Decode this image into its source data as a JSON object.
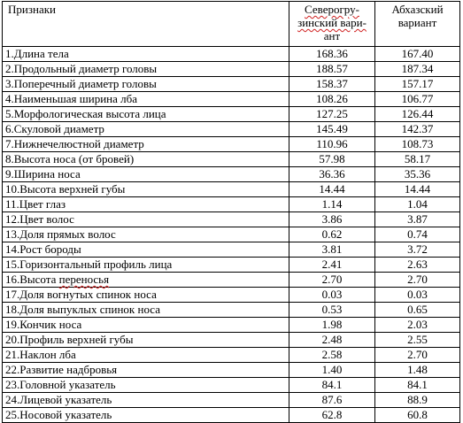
{
  "table": {
    "headers": {
      "col1": "Признаки",
      "col2_line1": "Северогру-",
      "col2_line2": "зинский вари-",
      "col2_line3": "ант",
      "col3_line1": "Абхазский",
      "col3_line2": "вариант"
    },
    "rows": [
      {
        "name": "1.Длина тела",
        "v1": "168.36",
        "v2": "167.40"
      },
      {
        "name": "2.Продольный диаметр головы",
        "v1": "188.57",
        "v2": "187.34"
      },
      {
        "name": "3.Поперечный диаметр головы",
        "v1": "158.37",
        "v2": "157.17"
      },
      {
        "name": "4.Наименьшая ширина лба",
        "v1": "108.26",
        "v2": "106.77"
      },
      {
        "name": "5.Морфологическая высота лица",
        "v1": "127.25",
        "v2": "126.44"
      },
      {
        "name": "6.Скуловой диаметр",
        "v1": "145.49",
        "v2": "142.37"
      },
      {
        "name": "7.Нижнечелюстной диаметр",
        "v1": "110.96",
        "v2": "108.73"
      },
      {
        "name": "8.Высота носа (от бровей)",
        "v1": "57.98",
        "v2": "58.17"
      },
      {
        "name": "9.Ширина носа",
        "v1": "36.36",
        "v2": "35.36"
      },
      {
        "name": "10.Высота верхней губы",
        "v1": "14.44",
        "v2": "14.44"
      },
      {
        "name": "11.Цвет глаз",
        "v1": "1.14",
        "v2": "1.04"
      },
      {
        "name": "12.Цвет волос",
        "v1": "3.86",
        "v2": "3.87"
      },
      {
        "name": "13.Доля прямых волос",
        "v1": "0.62",
        "v2": "0.74"
      },
      {
        "name": "14.Рост бороды",
        "v1": "3.81",
        "v2": "3.72"
      },
      {
        "name": "15.Горизонтальный профиль лица",
        "v1": "2.41",
        "v2": "2.63"
      },
      {
        "name": "16.Высота переносья",
        "v1": "2.70",
        "v2": "2.70"
      },
      {
        "name": "17.Доля вогнутых спинок носа",
        "v1": "0.03",
        "v2": "0.03"
      },
      {
        "name": "18.Доля выпуклых спинок носа",
        "v1": "0.53",
        "v2": "0.65"
      },
      {
        "name": "19.Кончик носа",
        "v1": "1.98",
        "v2": "2.03"
      },
      {
        "name": "20.Профиль верхней губы",
        "v1": "2.48",
        "v2": "2.55"
      },
      {
        "name": "21.Наклон лба",
        "v1": "2.58",
        "v2": "2.70"
      },
      {
        "name": "22.Развитие надбровья",
        "v1": "1.40",
        "v2": "1.48"
      },
      {
        "name": "23.Головной указатель",
        "v1": "84.1",
        "v2": "84.1"
      },
      {
        "name": "24.Лицевой указатель",
        "v1": "87.6",
        "v2": "88.9"
      },
      {
        "name": "25.Носовой указатель",
        "v1": "62.8",
        "v2": "60.8"
      }
    ]
  }
}
